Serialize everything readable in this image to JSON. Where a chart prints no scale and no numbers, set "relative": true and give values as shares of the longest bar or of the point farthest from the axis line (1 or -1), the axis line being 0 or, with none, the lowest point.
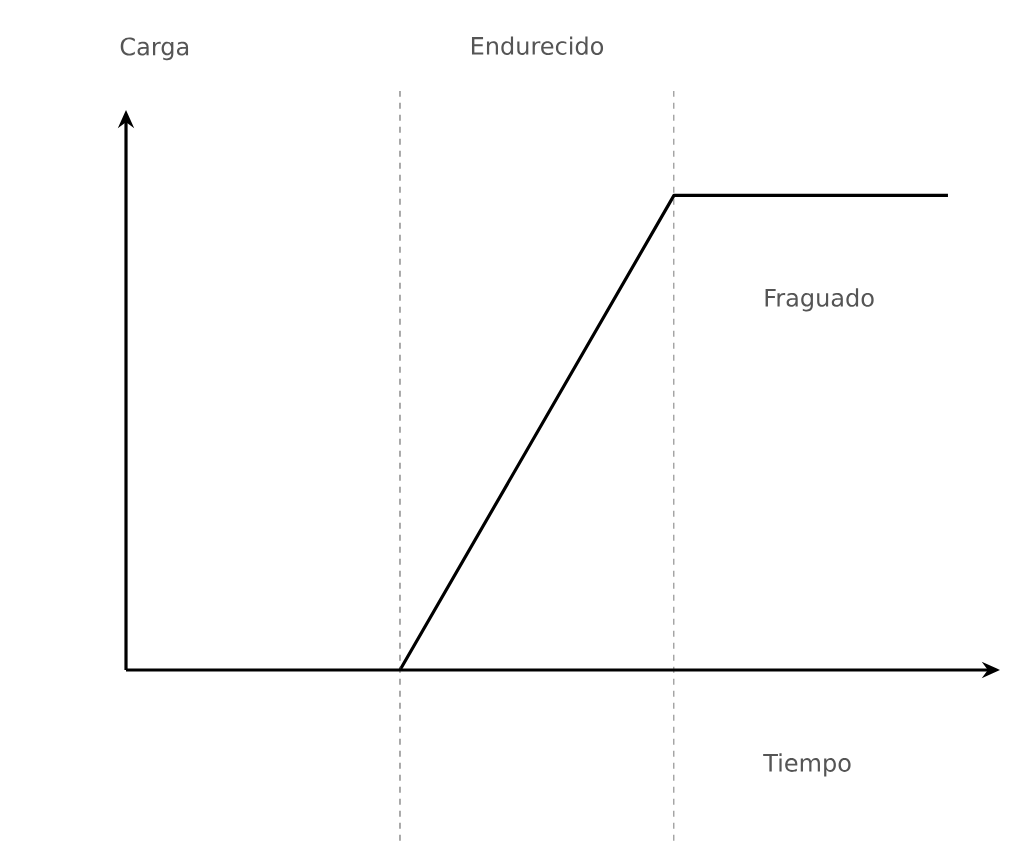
{
  "chart_data": {
    "type": "line",
    "relative": true,
    "xlabel": "Tiempo",
    "categories": [
      null,
      null,
      null,
      null
    ],
    "series": [
      {
        "color": "#000000",
        "values": [
          null,
          0,
          1,
          1
        ]
      }
    ],
    "annotations": [
      "Carga",
      "Endurecido",
      "Fraguado"
    ]
  }
}
